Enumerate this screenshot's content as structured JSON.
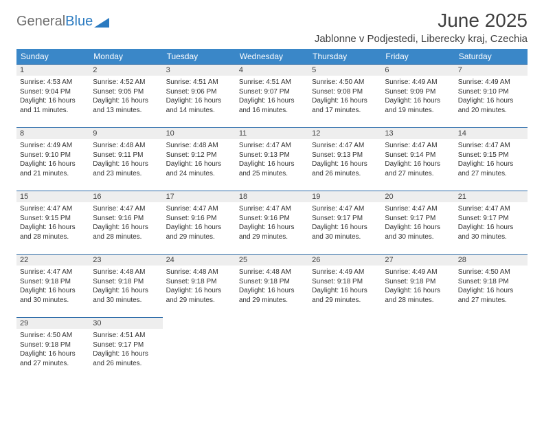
{
  "logo": {
    "text1": "General",
    "text2": "Blue"
  },
  "title": "June 2025",
  "location": "Jablonne v Podjestedi, Liberecky kraj, Czechia",
  "colors": {
    "header_bg": "#3a87c8",
    "header_text": "#ffffff",
    "row_border": "#2a6aa8",
    "daynum_bg": "#eeeeee",
    "text": "#303030",
    "logo_grey": "#6e6e6e",
    "logo_blue": "#2a7ac0",
    "page_bg": "#ffffff"
  },
  "typography": {
    "month_title_pt": 28,
    "location_pt": 15,
    "weekday_pt": 12,
    "daynum_pt": 11,
    "body_pt": 10
  },
  "weekdays": [
    "Sunday",
    "Monday",
    "Tuesday",
    "Wednesday",
    "Thursday",
    "Friday",
    "Saturday"
  ],
  "weeks": [
    [
      {
        "n": "1",
        "sunrise": "4:53 AM",
        "sunset": "9:04 PM",
        "day_h": 16,
        "day_m": 11
      },
      {
        "n": "2",
        "sunrise": "4:52 AM",
        "sunset": "9:05 PM",
        "day_h": 16,
        "day_m": 13
      },
      {
        "n": "3",
        "sunrise": "4:51 AM",
        "sunset": "9:06 PM",
        "day_h": 16,
        "day_m": 14
      },
      {
        "n": "4",
        "sunrise": "4:51 AM",
        "sunset": "9:07 PM",
        "day_h": 16,
        "day_m": 16
      },
      {
        "n": "5",
        "sunrise": "4:50 AM",
        "sunset": "9:08 PM",
        "day_h": 16,
        "day_m": 17
      },
      {
        "n": "6",
        "sunrise": "4:49 AM",
        "sunset": "9:09 PM",
        "day_h": 16,
        "day_m": 19
      },
      {
        "n": "7",
        "sunrise": "4:49 AM",
        "sunset": "9:10 PM",
        "day_h": 16,
        "day_m": 20
      }
    ],
    [
      {
        "n": "8",
        "sunrise": "4:49 AM",
        "sunset": "9:10 PM",
        "day_h": 16,
        "day_m": 21
      },
      {
        "n": "9",
        "sunrise": "4:48 AM",
        "sunset": "9:11 PM",
        "day_h": 16,
        "day_m": 23
      },
      {
        "n": "10",
        "sunrise": "4:48 AM",
        "sunset": "9:12 PM",
        "day_h": 16,
        "day_m": 24
      },
      {
        "n": "11",
        "sunrise": "4:47 AM",
        "sunset": "9:13 PM",
        "day_h": 16,
        "day_m": 25
      },
      {
        "n": "12",
        "sunrise": "4:47 AM",
        "sunset": "9:13 PM",
        "day_h": 16,
        "day_m": 26
      },
      {
        "n": "13",
        "sunrise": "4:47 AM",
        "sunset": "9:14 PM",
        "day_h": 16,
        "day_m": 27
      },
      {
        "n": "14",
        "sunrise": "4:47 AM",
        "sunset": "9:15 PM",
        "day_h": 16,
        "day_m": 27
      }
    ],
    [
      {
        "n": "15",
        "sunrise": "4:47 AM",
        "sunset": "9:15 PM",
        "day_h": 16,
        "day_m": 28
      },
      {
        "n": "16",
        "sunrise": "4:47 AM",
        "sunset": "9:16 PM",
        "day_h": 16,
        "day_m": 28
      },
      {
        "n": "17",
        "sunrise": "4:47 AM",
        "sunset": "9:16 PM",
        "day_h": 16,
        "day_m": 29
      },
      {
        "n": "18",
        "sunrise": "4:47 AM",
        "sunset": "9:16 PM",
        "day_h": 16,
        "day_m": 29
      },
      {
        "n": "19",
        "sunrise": "4:47 AM",
        "sunset": "9:17 PM",
        "day_h": 16,
        "day_m": 30
      },
      {
        "n": "20",
        "sunrise": "4:47 AM",
        "sunset": "9:17 PM",
        "day_h": 16,
        "day_m": 30
      },
      {
        "n": "21",
        "sunrise": "4:47 AM",
        "sunset": "9:17 PM",
        "day_h": 16,
        "day_m": 30
      }
    ],
    [
      {
        "n": "22",
        "sunrise": "4:47 AM",
        "sunset": "9:18 PM",
        "day_h": 16,
        "day_m": 30
      },
      {
        "n": "23",
        "sunrise": "4:48 AM",
        "sunset": "9:18 PM",
        "day_h": 16,
        "day_m": 30
      },
      {
        "n": "24",
        "sunrise": "4:48 AM",
        "sunset": "9:18 PM",
        "day_h": 16,
        "day_m": 29
      },
      {
        "n": "25",
        "sunrise": "4:48 AM",
        "sunset": "9:18 PM",
        "day_h": 16,
        "day_m": 29
      },
      {
        "n": "26",
        "sunrise": "4:49 AM",
        "sunset": "9:18 PM",
        "day_h": 16,
        "day_m": 29
      },
      {
        "n": "27",
        "sunrise": "4:49 AM",
        "sunset": "9:18 PM",
        "day_h": 16,
        "day_m": 28
      },
      {
        "n": "28",
        "sunrise": "4:50 AM",
        "sunset": "9:18 PM",
        "day_h": 16,
        "day_m": 27
      }
    ],
    [
      {
        "n": "29",
        "sunrise": "4:50 AM",
        "sunset": "9:18 PM",
        "day_h": 16,
        "day_m": 27
      },
      {
        "n": "30",
        "sunrise": "4:51 AM",
        "sunset": "9:17 PM",
        "day_h": 16,
        "day_m": 26
      },
      null,
      null,
      null,
      null,
      null
    ]
  ]
}
